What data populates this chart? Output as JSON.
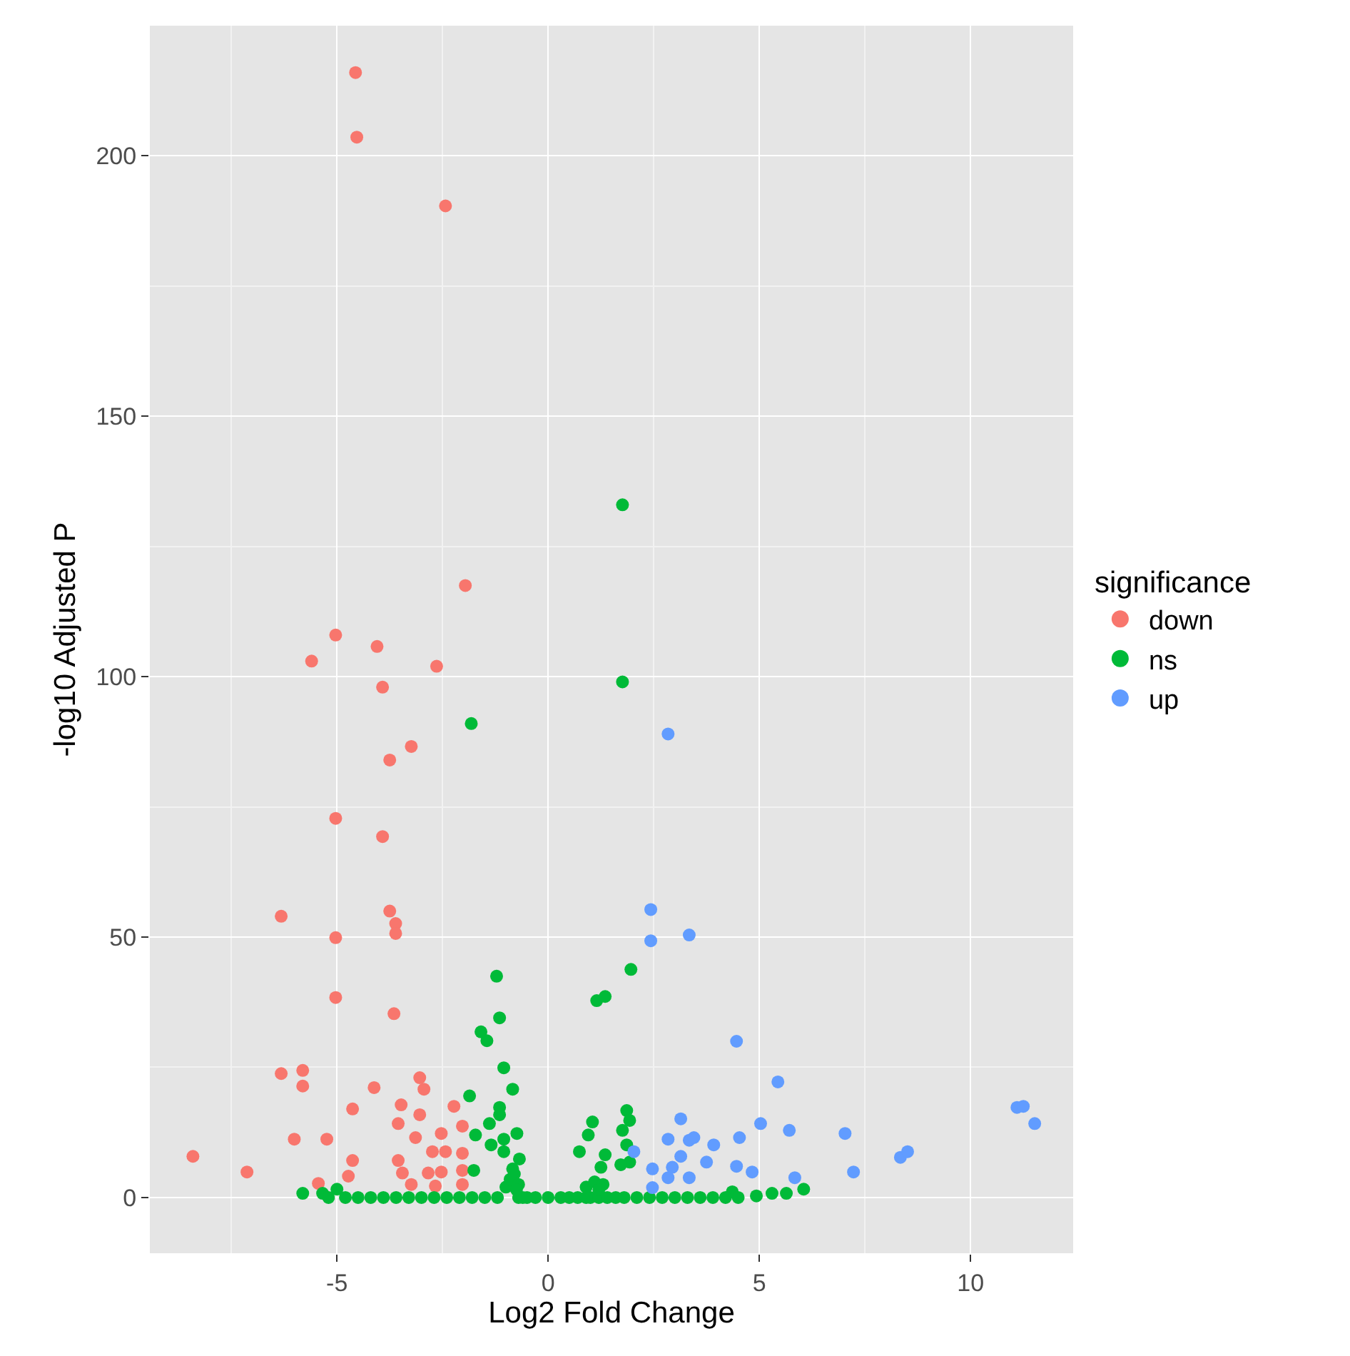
{
  "chart_data": {
    "type": "scatter",
    "xlabel": "Log2 Fold Change",
    "ylabel": "-log10 Adjusted P",
    "legend_title": "significance",
    "legend": "right",
    "grid": true,
    "marker": "circle",
    "xlim": [
      -9.43,
      12.43
    ],
    "ylim": [
      -10.7,
      225
    ],
    "xticks": [
      -5,
      0,
      5,
      10
    ],
    "yticks": [
      0,
      50,
      100,
      150,
      200
    ],
    "series": [
      {
        "name": "down",
        "color": "#f8766d",
        "x": [
          -4.56,
          -4.53,
          -2.43,
          -1.96,
          -5.03,
          -4.05,
          -5.6,
          -2.64,
          -3.92,
          -3.24,
          -3.75,
          -5.03,
          -3.92,
          -6.32,
          -3.75,
          -3.61,
          -3.61,
          -5.03,
          -5.03,
          -3.65,
          -6.32,
          -5.81,
          -5.81,
          -4.12,
          -3.04,
          -2.94,
          -4.63,
          -3.48,
          -3.55,
          -3.04,
          -2.23,
          -6.01,
          -5.24,
          -3.14,
          -2.53,
          -2.03,
          -8.41,
          -7.13,
          -4.63,
          -3.55,
          -2.74,
          -2.43,
          -2.03,
          -4.73,
          -3.45,
          -2.84,
          -2.53,
          -2.03,
          -5.44,
          -3.24,
          -2.67,
          -2.03
        ],
        "values": [
          216,
          203.6,
          190.4,
          117.5,
          108,
          105.8,
          103,
          102,
          98,
          86.6,
          84,
          72.8,
          69.3,
          54,
          55,
          52.6,
          50.7,
          49.9,
          38.4,
          35.3,
          23.8,
          24.4,
          21.4,
          21.1,
          23,
          20.8,
          17,
          17.8,
          14.2,
          15.9,
          17.5,
          11.2,
          11.2,
          11.5,
          12.3,
          13.7,
          7.9,
          4.9,
          7.1,
          7.1,
          8.8,
          8.8,
          8.5,
          4.1,
          4.7,
          4.7,
          4.9,
          5.2,
          2.7,
          2.5,
          2.2,
          2.5
        ]
      },
      {
        "name": "ns",
        "color": "#00ba38",
        "x": [
          1.76,
          1.76,
          -1.82,
          -1.22,
          -1.15,
          -1.59,
          -1.45,
          -1.05,
          -0.84,
          -1.86,
          -1.15,
          -1.15,
          -1.39,
          -1.72,
          -1.35,
          -1.05,
          -0.74,
          -1.05,
          -1.76,
          -0.68,
          -0.84,
          1.96,
          1.15,
          1.35,
          1.86,
          1.93,
          1.05,
          1.76,
          0.95,
          1.86,
          0.74,
          1.35,
          1.93,
          1.25,
          1.72,
          -5.81,
          -5.34,
          -5.2,
          -5.0,
          6.05,
          5.64,
          5.3,
          4.93,
          4.36,
          -4.8,
          -4.5,
          -4.2,
          -3.9,
          -3.6,
          -3.3,
          -3.0,
          -2.7,
          -2.4,
          -2.1,
          -1.8,
          -1.5,
          -1.2,
          -0.7,
          -0.6,
          -0.5,
          -0.3,
          0.0,
          0.3,
          0.5,
          0.7,
          0.9,
          1.0,
          1.2,
          1.4,
          1.6,
          1.8,
          2.1,
          2.4,
          2.7,
          3.0,
          3.3,
          3.6,
          3.9,
          4.2,
          4.5,
          -1.0,
          -0.9,
          -0.8,
          -0.7,
          0.9,
          1.1,
          1.3,
          -0.75,
          1.2
        ],
        "values": [
          133,
          99,
          91,
          42.5,
          34.5,
          31.8,
          30.1,
          24.9,
          20.8,
          19.5,
          17.3,
          15.9,
          14.2,
          12,
          10.1,
          8.8,
          12.3,
          11.2,
          5.2,
          7.4,
          5.5,
          43.8,
          37.8,
          38.6,
          16.7,
          14.8,
          14.5,
          12.9,
          12,
          10.1,
          8.8,
          8.2,
          6.8,
          5.8,
          6.3,
          0.8,
          0.8,
          0,
          1.6,
          1.6,
          0.8,
          0.8,
          0.3,
          1.1,
          0,
          0,
          0,
          0,
          0,
          0,
          0,
          0,
          0,
          0,
          0,
          0,
          0,
          0,
          0,
          0,
          0,
          0,
          0,
          0,
          0,
          0,
          0,
          0,
          0,
          0,
          0,
          0,
          0,
          0,
          0,
          0,
          0,
          0,
          0,
          0,
          2,
          3.5,
          4.5,
          2.5,
          2,
          3,
          2.5,
          1.5,
          1.5
        ]
      },
      {
        "name": "up",
        "color": "#619cff",
        "x": [
          2.84,
          2.43,
          2.43,
          3.34,
          4.46,
          5.44,
          5.03,
          5.71,
          7.03,
          3.14,
          2.84,
          3.34,
          3.45,
          3.92,
          4.53,
          11.1,
          11.25,
          11.52,
          8.34,
          8.51,
          7.23,
          2.03,
          3.14,
          3.75,
          4.46,
          4.83,
          2.47,
          2.94,
          3.34,
          2.84,
          2.47,
          5.84
        ],
        "values": [
          89,
          55.3,
          49.3,
          50.4,
          30,
          22.2,
          14.2,
          12.9,
          12.3,
          15.1,
          11.2,
          11,
          11.5,
          10.1,
          11.5,
          17.3,
          17.5,
          14.2,
          7.7,
          8.8,
          4.9,
          8.8,
          7.9,
          6.8,
          6.0,
          4.9,
          5.5,
          5.8,
          3.8,
          3.8,
          1.9,
          3.8
        ]
      }
    ]
  }
}
